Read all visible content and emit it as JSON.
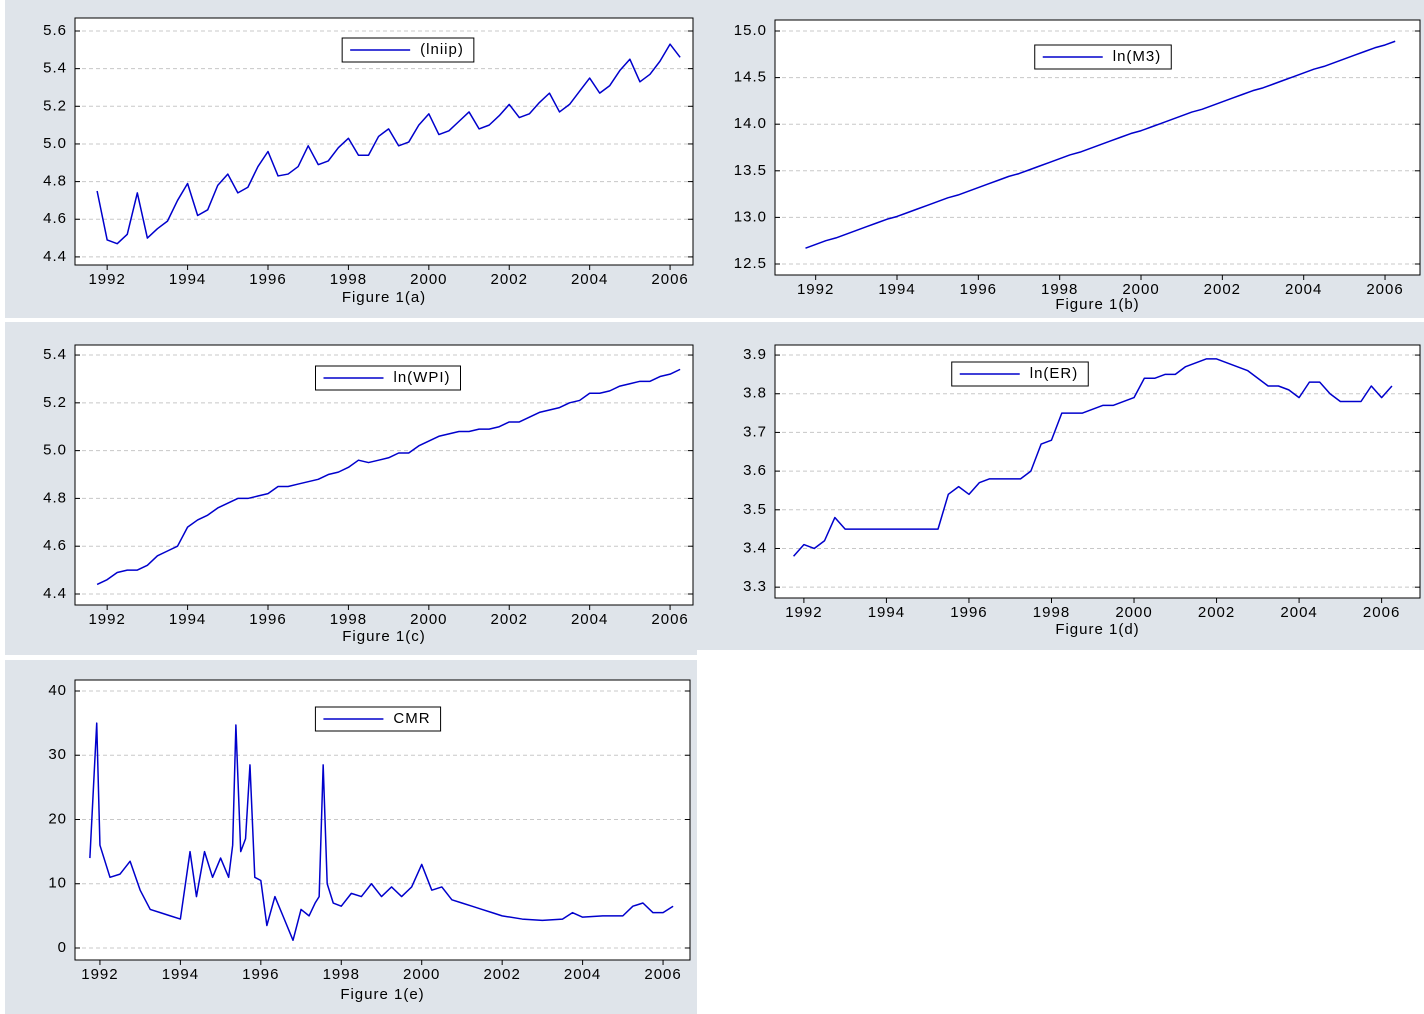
{
  "chart_data": [
    {
      "type": "line",
      "xlabel": "Figure 1(a)",
      "grid": true,
      "legend": "top",
      "xlim": [
        1991.2,
        2006.57
      ],
      "xticks": [
        1992,
        1994,
        1996,
        1998,
        2000,
        2002,
        2004,
        2006
      ],
      "ylim": [
        4.357,
        5.669
      ],
      "yticks": [
        4.4,
        4.6,
        4.8,
        {
          "value": 5,
          "label": "5.0"
        },
        5.2,
        5.4,
        5.6
      ],
      "x": [
        1991.75,
        1992,
        1992.25,
        1992.5,
        1992.75,
        1993,
        1993.25,
        1993.5,
        1993.75,
        1994,
        1994.25,
        1994.5,
        1994.75,
        1995,
        1995.25,
        1995.5,
        1995.75,
        1996,
        1996.25,
        1996.5,
        1996.75,
        1997,
        1997.25,
        1997.5,
        1997.75,
        1998,
        1998.25,
        1998.5,
        1998.75,
        1999,
        1999.25,
        1999.5,
        1999.75,
        2000,
        2000.25,
        2000.5,
        2000.75,
        2001,
        2001.25,
        2001.5,
        2001.75,
        2002,
        2002.25,
        2002.5,
        2002.75,
        2003,
        2003.25,
        2003.5,
        2003.75,
        2004,
        2004.25,
        2004.5,
        2004.75,
        2005,
        2005.25,
        2005.5,
        2005.75,
        2006,
        2006.25
      ],
      "series": [
        {
          "name": "(lniip)",
          "color": "#0000cc",
          "values": [
            4.75,
            4.49,
            4.47,
            4.52,
            4.74,
            4.5,
            4.55,
            4.59,
            4.7,
            4.79,
            4.62,
            4.65,
            4.78,
            4.84,
            4.74,
            4.77,
            4.88,
            4.96,
            4.83,
            4.84,
            4.88,
            4.99,
            4.89,
            4.91,
            4.98,
            5.03,
            4.94,
            4.94,
            5.04,
            5.08,
            4.99,
            5.01,
            5.1,
            5.16,
            5.05,
            5.07,
            5.12,
            5.17,
            5.08,
            5.1,
            5.15,
            5.21,
            5.14,
            5.16,
            5.22,
            5.27,
            5.17,
            5.21,
            5.28,
            5.35,
            5.27,
            5.31,
            5.39,
            5.45,
            5.33,
            5.37,
            5.44,
            5.53,
            5.46
          ]
        }
      ]
    },
    {
      "type": "line",
      "xlabel": "Figure 1(b)",
      "grid": true,
      "legend": "top",
      "xlim": [
        1991.0,
        2006.86
      ],
      "xticks": [
        1992,
        1994,
        1996,
        1998,
        2000,
        2002,
        2004,
        2006
      ],
      "ylim": [
        12.382,
        15.118
      ],
      "yticks": [
        12.5,
        {
          "value": 13,
          "label": "13.0"
        },
        13.5,
        {
          "value": 14,
          "label": "14.0"
        },
        14.5,
        {
          "value": 15,
          "label": "15.0"
        }
      ],
      "x": [
        1991.75,
        1992,
        1992.25,
        1992.5,
        1992.75,
        1993,
        1993.25,
        1993.5,
        1993.75,
        1994,
        1994.25,
        1994.5,
        1994.75,
        1995,
        1995.25,
        1995.5,
        1995.75,
        1996,
        1996.25,
        1996.5,
        1996.75,
        1997,
        1997.25,
        1997.5,
        1997.75,
        1998,
        1998.25,
        1998.5,
        1998.75,
        1999,
        1999.25,
        1999.5,
        1999.75,
        2000,
        2000.25,
        2000.5,
        2000.75,
        2001,
        2001.25,
        2001.5,
        2001.75,
        2002,
        2002.25,
        2002.5,
        2002.75,
        2003,
        2003.25,
        2003.5,
        2003.75,
        2004,
        2004.25,
        2004.5,
        2004.75,
        2005,
        2005.25,
        2005.5,
        2005.75,
        2006,
        2006.25
      ],
      "series": [
        {
          "name": "ln(M3)",
          "color": "#0000cc",
          "values": [
            12.67,
            12.71,
            12.75,
            12.78,
            12.82,
            12.86,
            12.9,
            12.94,
            12.98,
            13.01,
            13.05,
            13.09,
            13.13,
            13.17,
            13.21,
            13.24,
            13.28,
            13.32,
            13.36,
            13.4,
            13.44,
            13.47,
            13.51,
            13.55,
            13.59,
            13.63,
            13.67,
            13.7,
            13.74,
            13.78,
            13.82,
            13.86,
            13.9,
            13.93,
            13.97,
            14.01,
            14.05,
            14.09,
            14.13,
            14.16,
            14.2,
            14.24,
            14.28,
            14.32,
            14.36,
            14.39,
            14.43,
            14.47,
            14.51,
            14.55,
            14.59,
            14.62,
            14.66,
            14.7,
            14.74,
            14.78,
            14.82,
            14.85,
            14.89
          ]
        }
      ]
    },
    {
      "type": "line",
      "xlabel": "Figure 1(c)",
      "grid": true,
      "legend": "top",
      "xlim": [
        1991.2,
        2006.57
      ],
      "xticks": [
        1992,
        1994,
        1996,
        1998,
        2000,
        2002,
        2004,
        2006
      ],
      "ylim": [
        4.354,
        5.442
      ],
      "yticks": [
        4.4,
        4.6,
        4.8,
        {
          "value": 5,
          "label": "5.0"
        },
        5.2,
        5.4
      ],
      "x": [
        1991.75,
        1992,
        1992.25,
        1992.5,
        1992.75,
        1993,
        1993.25,
        1993.5,
        1993.75,
        1994,
        1994.25,
        1994.5,
        1994.75,
        1995,
        1995.25,
        1995.5,
        1995.75,
        1996,
        1996.25,
        1996.5,
        1996.75,
        1997,
        1997.25,
        1997.5,
        1997.75,
        1998,
        1998.25,
        1998.5,
        1998.75,
        1999,
        1999.25,
        1999.5,
        1999.75,
        2000,
        2000.25,
        2000.5,
        2000.75,
        2001,
        2001.25,
        2001.5,
        2001.75,
        2002,
        2002.25,
        2002.5,
        2002.75,
        2003,
        2003.25,
        2003.5,
        2003.75,
        2004,
        2004.25,
        2004.5,
        2004.75,
        2005,
        2005.25,
        2005.5,
        2005.75,
        2006,
        2006.25
      ],
      "series": [
        {
          "name": "ln(WPI)",
          "color": "#0000cc",
          "values": [
            4.44,
            4.46,
            4.49,
            4.5,
            4.5,
            4.52,
            4.56,
            4.58,
            4.6,
            4.68,
            4.71,
            4.73,
            4.76,
            4.78,
            4.8,
            4.8,
            4.81,
            4.82,
            4.85,
            4.85,
            4.86,
            4.87,
            4.88,
            4.9,
            4.91,
            4.93,
            4.96,
            4.95,
            4.96,
            4.97,
            4.99,
            4.99,
            5.02,
            5.04,
            5.06,
            5.07,
            5.08,
            5.08,
            5.09,
            5.09,
            5.1,
            5.12,
            5.12,
            5.14,
            5.16,
            5.17,
            5.18,
            5.2,
            5.21,
            5.24,
            5.24,
            5.25,
            5.27,
            5.28,
            5.29,
            5.29,
            5.31,
            5.32,
            5.34
          ]
        }
      ]
    },
    {
      "type": "line",
      "xlabel": "Figure 1(d)",
      "grid": true,
      "legend": "top",
      "xlim": [
        1991.3,
        2006.93
      ],
      "xticks": [
        1992,
        1994,
        1996,
        1998,
        2000,
        2002,
        2004,
        2006
      ],
      "ylim": [
        3.272,
        3.926
      ],
      "yticks": [
        3.3,
        3.4,
        3.5,
        3.6,
        3.7,
        3.8,
        3.9
      ],
      "x": [
        1991.75,
        1992,
        1992.25,
        1992.5,
        1992.75,
        1993,
        1993.25,
        1993.5,
        1993.75,
        1994,
        1994.25,
        1994.5,
        1994.75,
        1995,
        1995.25,
        1995.5,
        1995.75,
        1996,
        1996.25,
        1996.5,
        1996.75,
        1997,
        1997.25,
        1997.5,
        1997.75,
        1998,
        1998.25,
        1998.5,
        1998.75,
        1999,
        1999.25,
        1999.5,
        1999.75,
        2000,
        2000.25,
        2000.5,
        2000.75,
        2001,
        2001.25,
        2001.5,
        2001.75,
        2002,
        2002.25,
        2002.5,
        2002.75,
        2003,
        2003.25,
        2003.5,
        2003.75,
        2004,
        2004.25,
        2004.5,
        2004.75,
        2005,
        2005.25,
        2005.5,
        2005.75,
        2006,
        2006.25
      ],
      "series": [
        {
          "name": "ln(ER)",
          "color": "#0000cc",
          "values": [
            3.38,
            3.41,
            3.4,
            3.42,
            3.48,
            3.45,
            3.45,
            3.45,
            3.45,
            3.45,
            3.45,
            3.45,
            3.45,
            3.45,
            3.45,
            3.54,
            3.56,
            3.54,
            3.57,
            3.58,
            3.58,
            3.58,
            3.58,
            3.6,
            3.67,
            3.68,
            3.75,
            3.75,
            3.75,
            3.76,
            3.77,
            3.77,
            3.78,
            3.79,
            3.84,
            3.84,
            3.85,
            3.85,
            3.87,
            3.88,
            3.89,
            3.89,
            3.88,
            3.87,
            3.86,
            3.84,
            3.82,
            3.82,
            3.81,
            3.79,
            3.83,
            3.83,
            3.8,
            3.78,
            3.78,
            3.78,
            3.82,
            3.79,
            3.82
          ]
        }
      ]
    },
    {
      "type": "line",
      "xlabel": "Figure 1(e)",
      "grid": true,
      "legend": "top",
      "xlim": [
        1991.38,
        2006.67
      ],
      "xticks": [
        1992,
        1994,
        1996,
        1998,
        2000,
        2002,
        2004,
        2006
      ],
      "ylim": [
        -1.87,
        41.71
      ],
      "yticks": [
        0,
        10,
        20,
        30,
        40
      ],
      "x": [
        1991.75,
        1991.92,
        1992,
        1992.25,
        1992.5,
        1992.75,
        1993,
        1993.25,
        1993.5,
        1993.75,
        1994,
        1994.24,
        1994.4,
        1994.6,
        1994.8,
        1995,
        1995.2,
        1995.3,
        1995.38,
        1995.5,
        1995.62,
        1995.73,
        1995.85,
        1996,
        1996.15,
        1996.35,
        1996.55,
        1996.8,
        1997,
        1997.2,
        1997.35,
        1997.45,
        1997.55,
        1997.65,
        1997.8,
        1998,
        1998.25,
        1998.5,
        1998.75,
        1999,
        1999.25,
        1999.5,
        1999.75,
        2000,
        2000.25,
        2000.5,
        2000.75,
        2001,
        2001.25,
        2001.5,
        2001.75,
        2002,
        2002.5,
        2003,
        2003.5,
        2003.75,
        2004,
        2004.5,
        2005,
        2005.25,
        2005.5,
        2005.75,
        2006,
        2006.25
      ],
      "series": [
        {
          "name": "CMR",
          "color": "#0000cc",
          "values": [
            14,
            35,
            16,
            11,
            11.5,
            13.5,
            9,
            6,
            5.5,
            5,
            4.5,
            15,
            8,
            15,
            11,
            14,
            11,
            16,
            34.7,
            15,
            17,
            28.5,
            11,
            10.5,
            3.5,
            8,
            5,
            1.2,
            6,
            5,
            7,
            8,
            28.5,
            10,
            7,
            6.5,
            8.5,
            8,
            10,
            8,
            9.5,
            8,
            9.5,
            13,
            9,
            9.5,
            7.5,
            7,
            6.5,
            6,
            5.5,
            5,
            4.5,
            4.3,
            4.5,
            5.5,
            4.8,
            5,
            5,
            6.5,
            7,
            5.5,
            5.5,
            6.5
          ]
        }
      ]
    }
  ]
}
